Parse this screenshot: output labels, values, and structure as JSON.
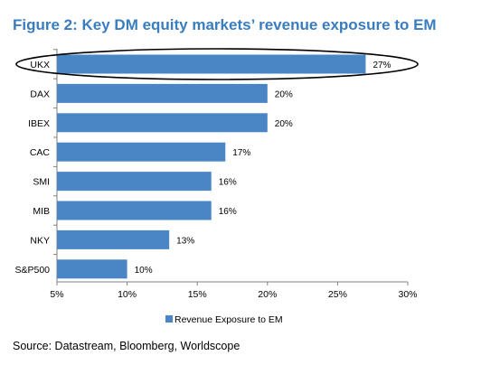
{
  "figure": {
    "title": "Figure 2: Key DM equity markets’ revenue exposure to EM",
    "source": "Source: Datastream, Bloomberg, Worldscope"
  },
  "chart_data": {
    "type": "bar",
    "orientation": "horizontal",
    "categories": [
      "UKX",
      "DAX",
      "IBEX",
      "CAC",
      "SMI",
      "MIB",
      "NKY",
      "S&P500"
    ],
    "series": [
      {
        "name": "Revenue Exposure to EM",
        "values": [
          27,
          20,
          20,
          17,
          16,
          16,
          13,
          10
        ],
        "labels": [
          "27%",
          "20%",
          "20%",
          "17%",
          "16%",
          "16%",
          "13%",
          "10%"
        ]
      }
    ],
    "xlim": [
      5,
      30
    ],
    "xticks": [
      5,
      10,
      15,
      20,
      25,
      30
    ],
    "xtick_labels": [
      "5%",
      "10%",
      "15%",
      "20%",
      "25%",
      "30%"
    ],
    "grid": false,
    "legend_position": "bottom",
    "highlighted_category": "UKX",
    "colors": {
      "bar": "#4a86c5",
      "title": "#3a7dbf"
    }
  }
}
